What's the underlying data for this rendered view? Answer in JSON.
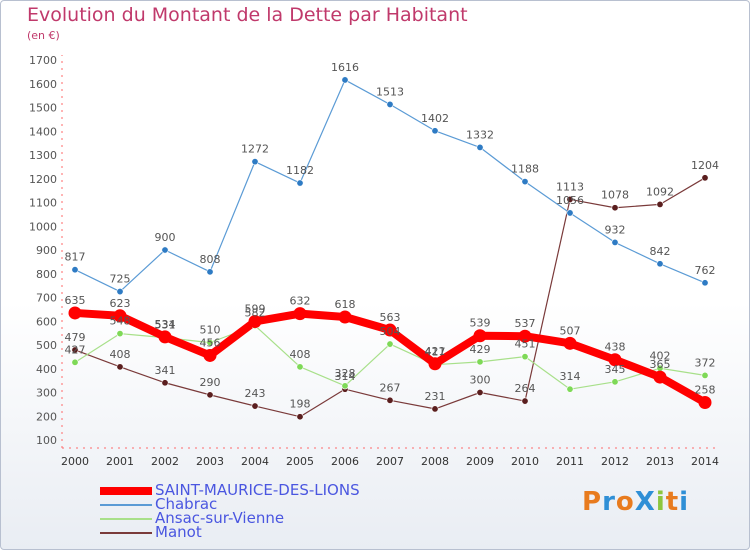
{
  "title": "Evolution du Montant de la Dette par Habitant",
  "subtitle": "(en €)",
  "logo": {
    "text": "ProXiti"
  },
  "chart_data": {
    "type": "line",
    "categories": [
      "2000",
      "2001",
      "2002",
      "2003",
      "2004",
      "2005",
      "2006",
      "2007",
      "2008",
      "2009",
      "2010",
      "2011",
      "2012",
      "2013",
      "2014"
    ],
    "ylim": [
      100,
      1700
    ],
    "yticks": [
      100,
      200,
      300,
      400,
      500,
      600,
      700,
      800,
      900,
      1000,
      1100,
      1200,
      1300,
      1400,
      1500,
      1600,
      1700
    ],
    "grid": false,
    "legend_position": "bottom-left",
    "series": [
      {
        "name": "SAINT-MAURICE-DES-LIONS",
        "color": "#ff0000",
        "marker": "#ff0000",
        "values": [
          635,
          623,
          534,
          456,
          599,
          632,
          618,
          563,
          421,
          539,
          537,
          507,
          438,
          365,
          258
        ]
      },
      {
        "name": "Chabrac",
        "color": "#5b9bd5",
        "marker": "#2e7bc4",
        "values": [
          817,
          725,
          900,
          808,
          1272,
          1182,
          1616,
          1513,
          1402,
          1332,
          1188,
          1056,
          932,
          842,
          762
        ]
      },
      {
        "name": "Ansac-sur-Vienne",
        "color": "#a8e08a",
        "marker": "#7ed957",
        "values": [
          427,
          548,
          531,
          510,
          582,
          408,
          328,
          504,
          417,
          429,
          451,
          314,
          345,
          402,
          372
        ]
      },
      {
        "name": "Manot",
        "color": "#7a3a3a",
        "marker": "#5a1e1e",
        "values": [
          479,
          408,
          341,
          290,
          243,
          198,
          314,
          267,
          231,
          300,
          264,
          1113,
          1078,
          1092,
          1204
        ]
      }
    ]
  }
}
